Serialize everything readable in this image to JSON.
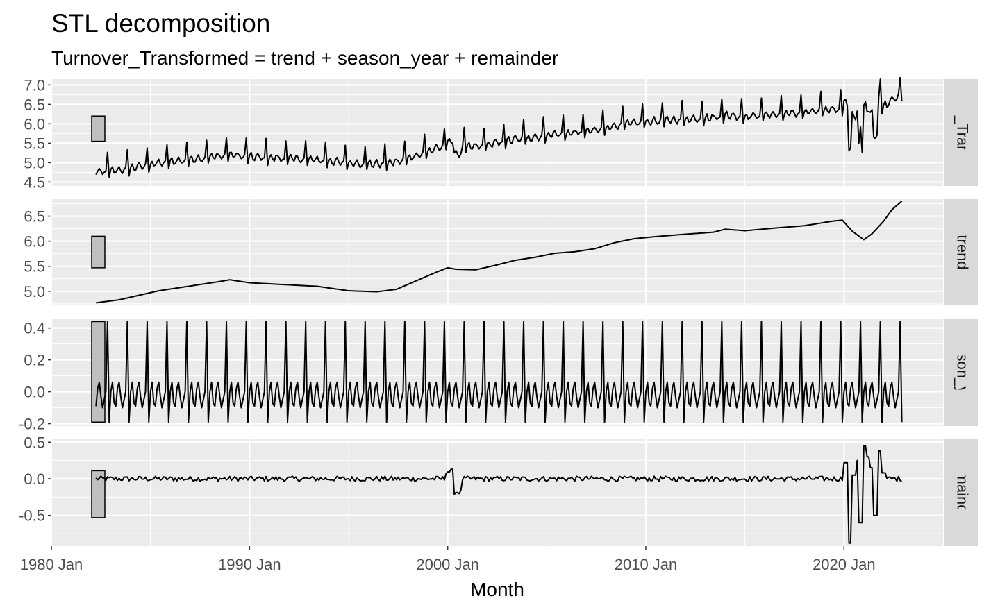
{
  "title": "STL decomposition",
  "subtitle": "Turnover_Transformed = trend + season_year + remainder",
  "colors": {
    "panel_background": "#EBEBEB",
    "grid_major": "#FFFFFF",
    "strip_background": "#D9D9D9",
    "line": "#000000",
    "range_bar_fill": "#BFBFBF"
  },
  "chart_data": {
    "type": "line",
    "facet_layout": "stacked-vertical",
    "x_axis": {
      "label": "Month",
      "range": [
        "1980 Jan",
        "2025 Jan"
      ],
      "tick_values": [
        "1980 Jan",
        "1990 Jan",
        "2000 Jan",
        "2010 Jan",
        "2020 Jan"
      ],
      "tick_labels": [
        "1980 Jan",
        "1990 Jan",
        "2000 Jan",
        "2010 Jan",
        "2020 Jan"
      ],
      "series_start": "1982 Apr",
      "series_end": "2022 Dec"
    },
    "grid": true,
    "legend": "none",
    "panels": [
      {
        "name": "Turnover_Transformed",
        "strip_label": "over_Transfor",
        "ylim": [
          4.4,
          7.15
        ],
        "y_ticks": [
          4.5,
          5.0,
          5.5,
          6.0,
          6.5,
          7.0
        ],
        "y_tick_labels": [
          "4.5",
          "5.0",
          "5.5",
          "6.0",
          "6.5",
          "7.0"
        ],
        "range_bar": [
          5.55,
          6.2
        ]
      },
      {
        "name": "trend",
        "strip_label": "trend",
        "ylim": [
          4.72,
          6.84
        ],
        "y_ticks": [
          5.0,
          5.5,
          6.0,
          6.5
        ],
        "y_tick_labels": [
          "5.0",
          "5.5",
          "6.0",
          "6.5"
        ],
        "range_bar": [
          5.47,
          6.1
        ],
        "points": [
          [
            "1982-04",
            4.77
          ],
          [
            "1983-06",
            4.83
          ],
          [
            "1984-06",
            4.92
          ],
          [
            "1985-06",
            5.01
          ],
          [
            "1986-06",
            5.07
          ],
          [
            "1987-06",
            5.13
          ],
          [
            "1988-06",
            5.19
          ],
          [
            "1989-01",
            5.23
          ],
          [
            "1990-01",
            5.17
          ],
          [
            "1991-06",
            5.14
          ],
          [
            "1993-06",
            5.1
          ],
          [
            "1995-01",
            5.01
          ],
          [
            "1996-06",
            4.99
          ],
          [
            "1997-06",
            5.04
          ],
          [
            "1998-06",
            5.21
          ],
          [
            "1999-06",
            5.38
          ],
          [
            "2000-01",
            5.47
          ],
          [
            "2000-06",
            5.44
          ],
          [
            "2001-06",
            5.43
          ],
          [
            "2002-06",
            5.52
          ],
          [
            "2003-06",
            5.62
          ],
          [
            "2004-06",
            5.68
          ],
          [
            "2005-06",
            5.76
          ],
          [
            "2006-06",
            5.79
          ],
          [
            "2007-06",
            5.85
          ],
          [
            "2008-06",
            5.97
          ],
          [
            "2009-06",
            6.05
          ],
          [
            "2010-06",
            6.09
          ],
          [
            "2012-01",
            6.14
          ],
          [
            "2013-06",
            6.18
          ],
          [
            "2014-01",
            6.24
          ],
          [
            "2015-01",
            6.21
          ],
          [
            "2016-06",
            6.26
          ],
          [
            "2018-01",
            6.31
          ],
          [
            "2019-06",
            6.4
          ],
          [
            "2019-12",
            6.42
          ],
          [
            "2020-06",
            6.2
          ],
          [
            "2021-01",
            6.03
          ],
          [
            "2021-06",
            6.15
          ],
          [
            "2022-01",
            6.4
          ],
          [
            "2022-06",
            6.63
          ],
          [
            "2022-12",
            6.8
          ]
        ]
      },
      {
        "name": "season_year",
        "strip_label": "season_year",
        "ylim": [
          -0.215,
          0.455
        ],
        "y_ticks": [
          -0.2,
          0.0,
          0.2,
          0.4
        ],
        "y_tick_labels": [
          "-0.2",
          "0.0",
          "0.2",
          "0.4"
        ],
        "range_bar": [
          -0.19,
          0.44
        ],
        "seasonal_pattern": [
          0.0,
          0.06,
          -0.07,
          -0.09,
          0.02,
          0.06,
          -0.03,
          -0.1,
          -0.05,
          0.0,
          0.44,
          -0.19
        ]
      },
      {
        "name": "remainder",
        "strip_label": "remainder",
        "ylim": [
          -0.92,
          0.55
        ],
        "y_ticks": [
          -0.5,
          0.0,
          0.5
        ],
        "y_tick_labels": [
          "-0.5",
          "0.0",
          "0.5"
        ],
        "range_bar": [
          -0.53,
          0.11
        ]
      }
    ]
  }
}
